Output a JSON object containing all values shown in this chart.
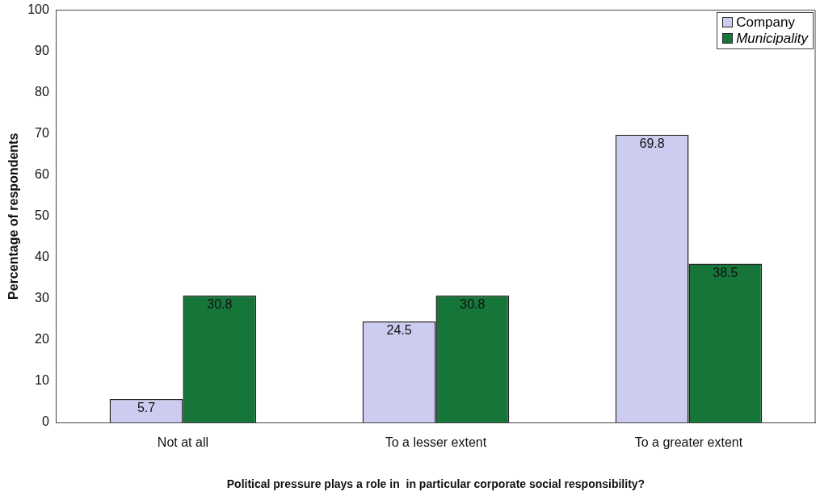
{
  "chart_data": {
    "type": "bar",
    "xlabel": "Political pressure plays a role in  in particular corporate social responsibility?",
    "ylabel": "Percentage of respondents",
    "categories": [
      "Not at all",
      "To a lesser extent",
      "To a greater extent"
    ],
    "series": [
      {
        "name": "Company",
        "color": "#ccccf0",
        "values": [
          5.7,
          24.5,
          69.8
        ]
      },
      {
        "name": "Municipality",
        "color": "#16763a",
        "values": [
          30.8,
          30.8,
          38.5
        ]
      }
    ],
    "ylim": [
      0,
      100
    ],
    "yticks": [
      0,
      10,
      20,
      30,
      40,
      50,
      60,
      70,
      80,
      90,
      100
    ],
    "grid": false,
    "legend": "top right",
    "data_labels": true
  }
}
